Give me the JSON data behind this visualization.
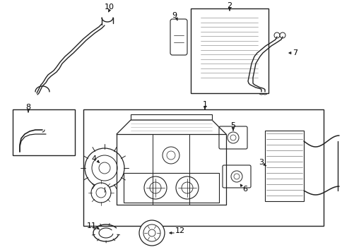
{
  "bg_color": "#ffffff",
  "line_color": "#222222",
  "label_color": "#000000",
  "fig_w": 4.85,
  "fig_h": 3.57,
  "dpi": 100
}
